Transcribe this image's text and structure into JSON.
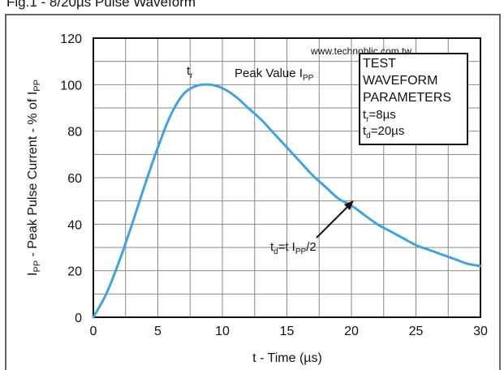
{
  "figure_caption": "Fig.1 - 8/20µs Pulse Waveform",
  "watermark": "www.technoblic.com.tw",
  "colors": {
    "curve": "#3ea3e6",
    "grid": "#888888",
    "axis": "#111111",
    "frame": "#333333"
  },
  "annotations": {
    "tr_main": "t",
    "tr_sub": "r",
    "peak_main": "Peak Value I",
    "peak_sub": "PP",
    "td_a": "t",
    "td_a_sub": "d",
    "td_b": "=t",
    "td_c": "I",
    "td_c_sub": "PP",
    "td_d": "/2"
  },
  "param_box": {
    "lines": [
      "TEST",
      "WAVEFORM",
      "PARAMETERS"
    ],
    "tr_main": "t",
    "tr_sub": "r",
    "tr_value": "=8µs",
    "td_main": "t",
    "td_sub": "d",
    "td_value": "=20µs"
  },
  "y_label": {
    "i_main": "I",
    "i_sub": "PP",
    "middle": " - Peak Pulse Current - % of I",
    "end_sub": "PP"
  },
  "chart_data": {
    "type": "line",
    "xlabel": "t - Time (µs)",
    "ylabel": "IPP - Peak Pulse Current - % of IPP",
    "xlim": [
      0,
      30
    ],
    "ylim": [
      0,
      120
    ],
    "x_ticks": [
      "0",
      "5",
      "10",
      "15",
      "20",
      "25",
      "30"
    ],
    "y_ticks": [
      "0",
      "20",
      "40",
      "60",
      "80",
      "100",
      "120"
    ],
    "grid": true,
    "series": [
      {
        "x": [
          0,
          1,
          2,
          3,
          4,
          5,
          6,
          7,
          8,
          9,
          10,
          11,
          12,
          13,
          14,
          15,
          16,
          17,
          18,
          19,
          20,
          21,
          22,
          23,
          24,
          25,
          26,
          27,
          28,
          29,
          30
        ],
        "values": [
          0,
          10,
          24,
          40,
          57,
          73,
          87,
          96,
          99.5,
          100,
          98.5,
          95,
          90,
          85,
          79,
          73,
          67,
          61,
          56,
          51,
          48,
          44,
          40,
          37,
          34,
          31,
          29,
          27,
          25,
          23,
          22
        ]
      }
    ]
  }
}
